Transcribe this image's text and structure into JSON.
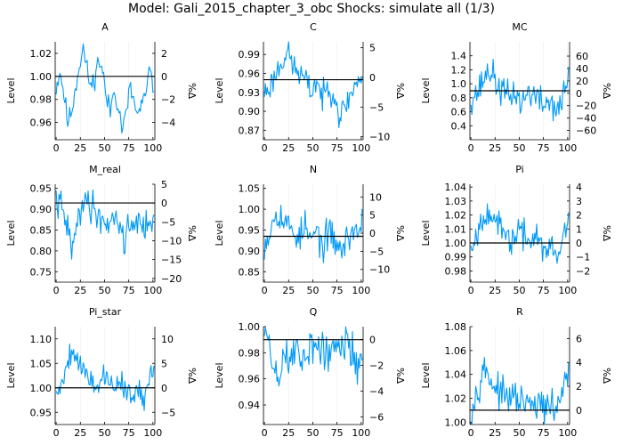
{
  "figure": {
    "title": "Model: Gali_2015_chapter_3_obc        Shocks: simulate all  (1/3)",
    "line_color": "#009af9"
  },
  "chart_data": [
    {
      "type": "line",
      "title": "A",
      "ylabel": "Level",
      "y2label": "%Δ",
      "ylim": [
        0.945,
        1.03
      ],
      "y2lim": [
        -5.5,
        3.0
      ],
      "xticks": [
        0,
        25,
        50,
        75,
        100
      ],
      "yticks": [
        0.96,
        0.98,
        1.0,
        1.02
      ],
      "ytick_labels": [
        "0.96",
        "0.98",
        "1.00",
        "1.02"
      ],
      "y2ticks": [
        -4,
        -2,
        0,
        2
      ],
      "y2tick_labels": [
        "−4",
        "−2",
        "0",
        "2"
      ],
      "ref": 1.0,
      "keys": [
        [
          0,
          0.99
        ],
        [
          4,
          1.005
        ],
        [
          8,
          0.985
        ],
        [
          12,
          0.96
        ],
        [
          16,
          0.97
        ],
        [
          20,
          0.99
        ],
        [
          24,
          1.01
        ],
        [
          28,
          1.025
        ],
        [
          32,
          1.005
        ],
        [
          36,
          0.99
        ],
        [
          40,
          1.0
        ],
        [
          44,
          1.015
        ],
        [
          48,
          1.005
        ],
        [
          52,
          0.98
        ],
        [
          56,
          0.97
        ],
        [
          60,
          0.99
        ],
        [
          64,
          0.975
        ],
        [
          68,
          0.955
        ],
        [
          72,
          0.965
        ],
        [
          76,
          0.99
        ],
        [
          80,
          0.98
        ],
        [
          84,
          0.965
        ],
        [
          88,
          0.975
        ],
        [
          92,
          0.98
        ],
        [
          96,
          1.005
        ],
        [
          101,
          0.99
        ]
      ],
      "noise": 0.007,
      "seed": 11
    },
    {
      "type": "line",
      "title": "C",
      "ylabel": "Level",
      "y2label": "%Δ",
      "ylim": [
        0.855,
        1.01
      ],
      "y2lim": [
        -10.5,
        6.0
      ],
      "xticks": [
        0,
        25,
        50,
        75,
        100
      ],
      "yticks": [
        0.87,
        0.9,
        0.93,
        0.96,
        0.99
      ],
      "ytick_labels": [
        "0.87",
        "0.90",
        "0.93",
        "0.96",
        "0.99"
      ],
      "y2ticks": [
        -10,
        -5,
        0,
        5
      ],
      "y2tick_labels": [
        "−10",
        "−5",
        "0",
        "5"
      ],
      "ref": 0.95,
      "keys": [
        [
          0,
          0.93
        ],
        [
          6,
          0.94
        ],
        [
          12,
          0.96
        ],
        [
          18,
          0.98
        ],
        [
          24,
          0.995
        ],
        [
          30,
          0.97
        ],
        [
          36,
          0.96
        ],
        [
          42,
          0.95
        ],
        [
          48,
          0.93
        ],
        [
          54,
          0.95
        ],
        [
          60,
          0.92
        ],
        [
          66,
          0.94
        ],
        [
          72,
          0.93
        ],
        [
          78,
          0.89
        ],
        [
          84,
          0.91
        ],
        [
          90,
          0.93
        ],
        [
          96,
          0.95
        ],
        [
          101,
          0.95
        ]
      ],
      "noise": 0.017,
      "seed": 23
    },
    {
      "type": "line",
      "title": "MC",
      "ylabel": "Level",
      "y2label": "%Δ",
      "ylim": [
        0.2,
        1.6
      ],
      "y2lim": [
        -75,
        83
      ],
      "xticks": [
        0,
        25,
        50,
        75,
        100
      ],
      "yticks": [
        0.4,
        0.6,
        0.8,
        1.0,
        1.2,
        1.4
      ],
      "ytick_labels": [
        "0.4",
        "0.6",
        "0.8",
        "1.0",
        "1.2",
        "1.4"
      ],
      "y2ticks": [
        -60,
        -40,
        -20,
        0,
        20,
        40,
        60
      ],
      "y2tick_labels": [
        "−60",
        "−40",
        "−20",
        "0",
        "20",
        "40",
        "60"
      ],
      "ref": 0.9,
      "keys": [
        [
          0,
          0.8
        ],
        [
          8,
          0.9
        ],
        [
          14,
          1.1
        ],
        [
          20,
          1.2
        ],
        [
          26,
          1.0
        ],
        [
          32,
          0.9
        ],
        [
          40,
          0.8
        ],
        [
          46,
          0.9
        ],
        [
          52,
          0.7
        ],
        [
          60,
          0.9
        ],
        [
          68,
          0.8
        ],
        [
          74,
          0.7
        ],
        [
          80,
          0.75
        ],
        [
          86,
          0.7
        ],
        [
          92,
          0.6
        ],
        [
          96,
          0.9
        ],
        [
          101,
          1.1
        ]
      ],
      "noise": 0.17,
      "seed": 37
    },
    {
      "type": "line",
      "title": "M_real",
      "ylabel": "Level",
      "y2label": "%Δ",
      "ylim": [
        0.725,
        0.96
      ],
      "y2lim": [
        -21.0,
        5.0
      ],
      "xticks": [
        0,
        25,
        50,
        75,
        100
      ],
      "yticks": [
        0.75,
        0.8,
        0.85,
        0.9,
        0.95
      ],
      "ytick_labels": [
        "0.75",
        "0.80",
        "0.85",
        "0.90",
        "0.95"
      ],
      "y2ticks": [
        -20,
        -15,
        -10,
        -5,
        0,
        5
      ],
      "y2tick_labels": [
        "−20",
        "−15",
        "−10",
        "−5",
        "0",
        "5"
      ],
      "ref": 0.915,
      "keys": [
        [
          0,
          0.92
        ],
        [
          6,
          0.9
        ],
        [
          12,
          0.85
        ],
        [
          18,
          0.8
        ],
        [
          22,
          0.87
        ],
        [
          28,
          0.93
        ],
        [
          34,
          0.91
        ],
        [
          40,
          0.9
        ],
        [
          46,
          0.88
        ],
        [
          52,
          0.86
        ],
        [
          58,
          0.89
        ],
        [
          64,
          0.87
        ],
        [
          70,
          0.83
        ],
        [
          76,
          0.86
        ],
        [
          82,
          0.88
        ],
        [
          88,
          0.85
        ],
        [
          94,
          0.87
        ],
        [
          101,
          0.88
        ]
      ],
      "noise": 0.03,
      "seed": 41
    },
    {
      "type": "line",
      "title": "N",
      "ylabel": "Level",
      "y2label": "%Δ",
      "ylim": [
        0.825,
        1.06
      ],
      "y2lim": [
        -13.5,
        13.5
      ],
      "xticks": [
        0,
        25,
        50,
        75,
        100
      ],
      "yticks": [
        0.85,
        0.9,
        0.95,
        1.0,
        1.05
      ],
      "ytick_labels": [
        "0.85",
        "0.90",
        "0.95",
        "1.00",
        "1.05"
      ],
      "y2ticks": [
        -10,
        -5,
        0,
        5,
        10
      ],
      "y2tick_labels": [
        "−10",
        "−5",
        "0",
        "5",
        "10"
      ],
      "ref": 0.935,
      "keys": [
        [
          0,
          0.92
        ],
        [
          6,
          0.95
        ],
        [
          12,
          1.0
        ],
        [
          18,
          0.98
        ],
        [
          24,
          0.96
        ],
        [
          30,
          0.95
        ],
        [
          36,
          0.93
        ],
        [
          42,
          0.96
        ],
        [
          48,
          0.92
        ],
        [
          54,
          0.95
        ],
        [
          60,
          0.91
        ],
        [
          66,
          0.94
        ],
        [
          72,
          0.93
        ],
        [
          78,
          0.9
        ],
        [
          84,
          0.92
        ],
        [
          90,
          0.95
        ],
        [
          96,
          0.94
        ],
        [
          101,
          0.97
        ]
      ],
      "noise": 0.03,
      "seed": 53
    },
    {
      "type": "line",
      "title": "Pi",
      "ylabel": "Level",
      "y2label": "%Δ",
      "ylim": [
        0.972,
        1.042
      ],
      "y2lim": [
        -2.8,
        4.2
      ],
      "xticks": [
        0,
        25,
        50,
        75,
        100
      ],
      "yticks": [
        0.98,
        0.99,
        1.0,
        1.01,
        1.02,
        1.03,
        1.04
      ],
      "ytick_labels": [
        "0.98",
        "0.99",
        "1.00",
        "1.01",
        "1.02",
        "1.03",
        "1.04"
      ],
      "y2ticks": [
        -2,
        -1,
        0,
        1,
        2,
        3,
        4
      ],
      "y2tick_labels": [
        "−2",
        "−1",
        "0",
        "1",
        "2",
        "3",
        "4"
      ],
      "ref": 1.0,
      "keys": [
        [
          0,
          1.0
        ],
        [
          6,
          1.005
        ],
        [
          12,
          1.02
        ],
        [
          18,
          1.025
        ],
        [
          24,
          1.015
        ],
        [
          30,
          1.01
        ],
        [
          36,
          1.005
        ],
        [
          42,
          1.0
        ],
        [
          48,
          1.01
        ],
        [
          54,
          1.005
        ],
        [
          60,
          1.0
        ],
        [
          66,
          1.008
        ],
        [
          72,
          1.0
        ],
        [
          78,
          0.99
        ],
        [
          84,
          1.0
        ],
        [
          90,
          0.985
        ],
        [
          96,
          1.01
        ],
        [
          101,
          1.02
        ]
      ],
      "noise": 0.008,
      "seed": 67
    },
    {
      "type": "line",
      "title": "Pi_star",
      "ylabel": "Level",
      "y2label": "%Δ",
      "ylim": [
        0.925,
        1.125
      ],
      "y2lim": [
        -7.5,
        12.5
      ],
      "xticks": [
        0,
        25,
        50,
        75,
        100
      ],
      "yticks": [
        0.95,
        1.0,
        1.05,
        1.1
      ],
      "ytick_labels": [
        "0.95",
        "1.00",
        "1.05",
        "1.10"
      ],
      "y2ticks": [
        -5,
        0,
        5,
        10
      ],
      "y2tick_labels": [
        "−5",
        "0",
        "5",
        "10"
      ],
      "ref": 1.0,
      "keys": [
        [
          0,
          0.99
        ],
        [
          6,
          1.01
        ],
        [
          12,
          1.06
        ],
        [
          18,
          1.08
        ],
        [
          24,
          1.05
        ],
        [
          30,
          1.03
        ],
        [
          36,
          1.02
        ],
        [
          42,
          1.0
        ],
        [
          48,
          1.03
        ],
        [
          54,
          1.01
        ],
        [
          60,
          1.0
        ],
        [
          66,
          1.02
        ],
        [
          72,
          1.0
        ],
        [
          78,
          0.97
        ],
        [
          84,
          1.0
        ],
        [
          90,
          0.96
        ],
        [
          96,
          1.03
        ],
        [
          101,
          1.05
        ]
      ],
      "noise": 0.02,
      "seed": 79
    },
    {
      "type": "line",
      "title": "Q",
      "ylabel": "Level",
      "y2label": "%Δ",
      "ylim": [
        0.925,
        1.0
      ],
      "y2lim": [
        -6.6,
        1.0
      ],
      "xticks": [
        0,
        25,
        50,
        75,
        100
      ],
      "yticks": [
        0.94,
        0.96,
        0.98,
        1.0
      ],
      "ytick_labels": [
        "0.94",
        "0.96",
        "0.98",
        "1.00"
      ],
      "y2ticks": [
        -6,
        -4,
        -2,
        0
      ],
      "y2tick_labels": [
        "−6",
        "−4",
        "−2",
        "0"
      ],
      "ref": 0.99,
      "keys": [
        [
          0,
          0.995
        ],
        [
          4,
          0.99
        ],
        [
          8,
          0.97
        ],
        [
          14,
          0.96
        ],
        [
          20,
          0.98
        ],
        [
          26,
          0.97
        ],
        [
          32,
          0.985
        ],
        [
          38,
          0.975
        ],
        [
          44,
          0.98
        ],
        [
          50,
          0.99
        ],
        [
          56,
          0.98
        ],
        [
          62,
          0.985
        ],
        [
          68,
          0.975
        ],
        [
          74,
          0.985
        ],
        [
          80,
          0.98
        ],
        [
          86,
          0.99
        ],
        [
          92,
          0.98
        ],
        [
          96,
          0.97
        ],
        [
          101,
          0.98
        ]
      ],
      "noise": 0.013,
      "seed": 89
    },
    {
      "type": "line",
      "title": "R",
      "ylabel": "Level",
      "y2label": "%Δ",
      "ylim": [
        0.998,
        1.08
      ],
      "y2lim": [
        -1.2,
        7.0
      ],
      "xticks": [
        0,
        25,
        50,
        75,
        100
      ],
      "yticks": [
        1.0,
        1.02,
        1.04,
        1.06,
        1.08
      ],
      "ytick_labels": [
        "1.00",
        "1.02",
        "1.04",
        "1.06",
        "1.08"
      ],
      "y2ticks": [
        0,
        2,
        4,
        6
      ],
      "y2tick_labels": [
        "0",
        "2",
        "4",
        "6"
      ],
      "ref": 1.01,
      "keys": [
        [
          0,
          1.01
        ],
        [
          6,
          1.025
        ],
        [
          12,
          1.045
        ],
        [
          18,
          1.04
        ],
        [
          24,
          1.03
        ],
        [
          30,
          1.025
        ],
        [
          36,
          1.02
        ],
        [
          42,
          1.02
        ],
        [
          48,
          1.02
        ],
        [
          54,
          1.015
        ],
        [
          60,
          1.015
        ],
        [
          66,
          1.012
        ],
        [
          72,
          1.015
        ],
        [
          78,
          1.012
        ],
        [
          84,
          1.01
        ],
        [
          90,
          1.015
        ],
        [
          96,
          1.03
        ],
        [
          101,
          1.04
        ]
      ],
      "noise": 0.01,
      "seed": 97
    }
  ]
}
